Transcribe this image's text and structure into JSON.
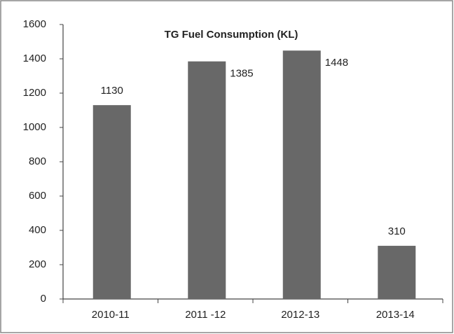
{
  "chart_data": {
    "type": "bar",
    "title": "TG Fuel Consumption (KL)",
    "categories": [
      "2010-11",
      "2011 -12",
      "2012-13",
      "2013-14"
    ],
    "values": [
      1130,
      1385,
      1448,
      310
    ],
    "color": "#686868",
    "ylim": [
      0,
      1600
    ],
    "yticks": [
      0,
      200,
      400,
      600,
      800,
      1000,
      1200,
      1400,
      1600
    ]
  }
}
